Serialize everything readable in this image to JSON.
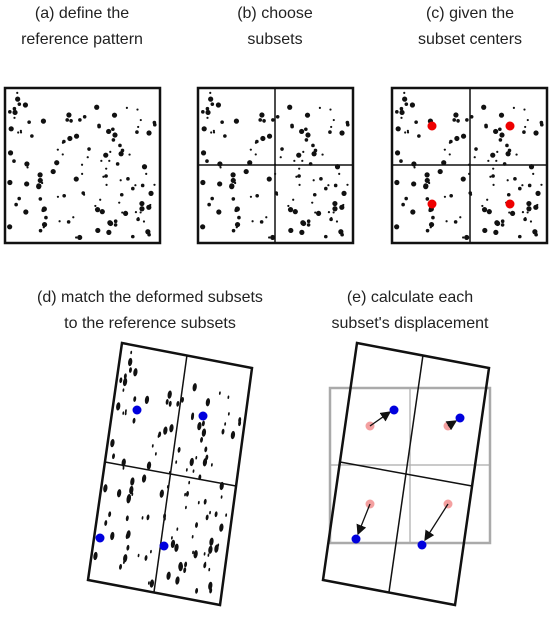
{
  "panels": [
    {
      "label_lines": [
        "(a) define the",
        "reference pattern"
      ]
    },
    {
      "label_lines": [
        "(b) choose",
        "subsets"
      ]
    },
    {
      "label_lines": [
        "(c) given the",
        "subset centers"
      ]
    },
    {
      "label_lines": [
        "(d) match the deformed subsets",
        "to the reference subsets"
      ]
    },
    {
      "label_lines": [
        "(e) calculate each",
        "subset's displacement"
      ]
    }
  ]
}
